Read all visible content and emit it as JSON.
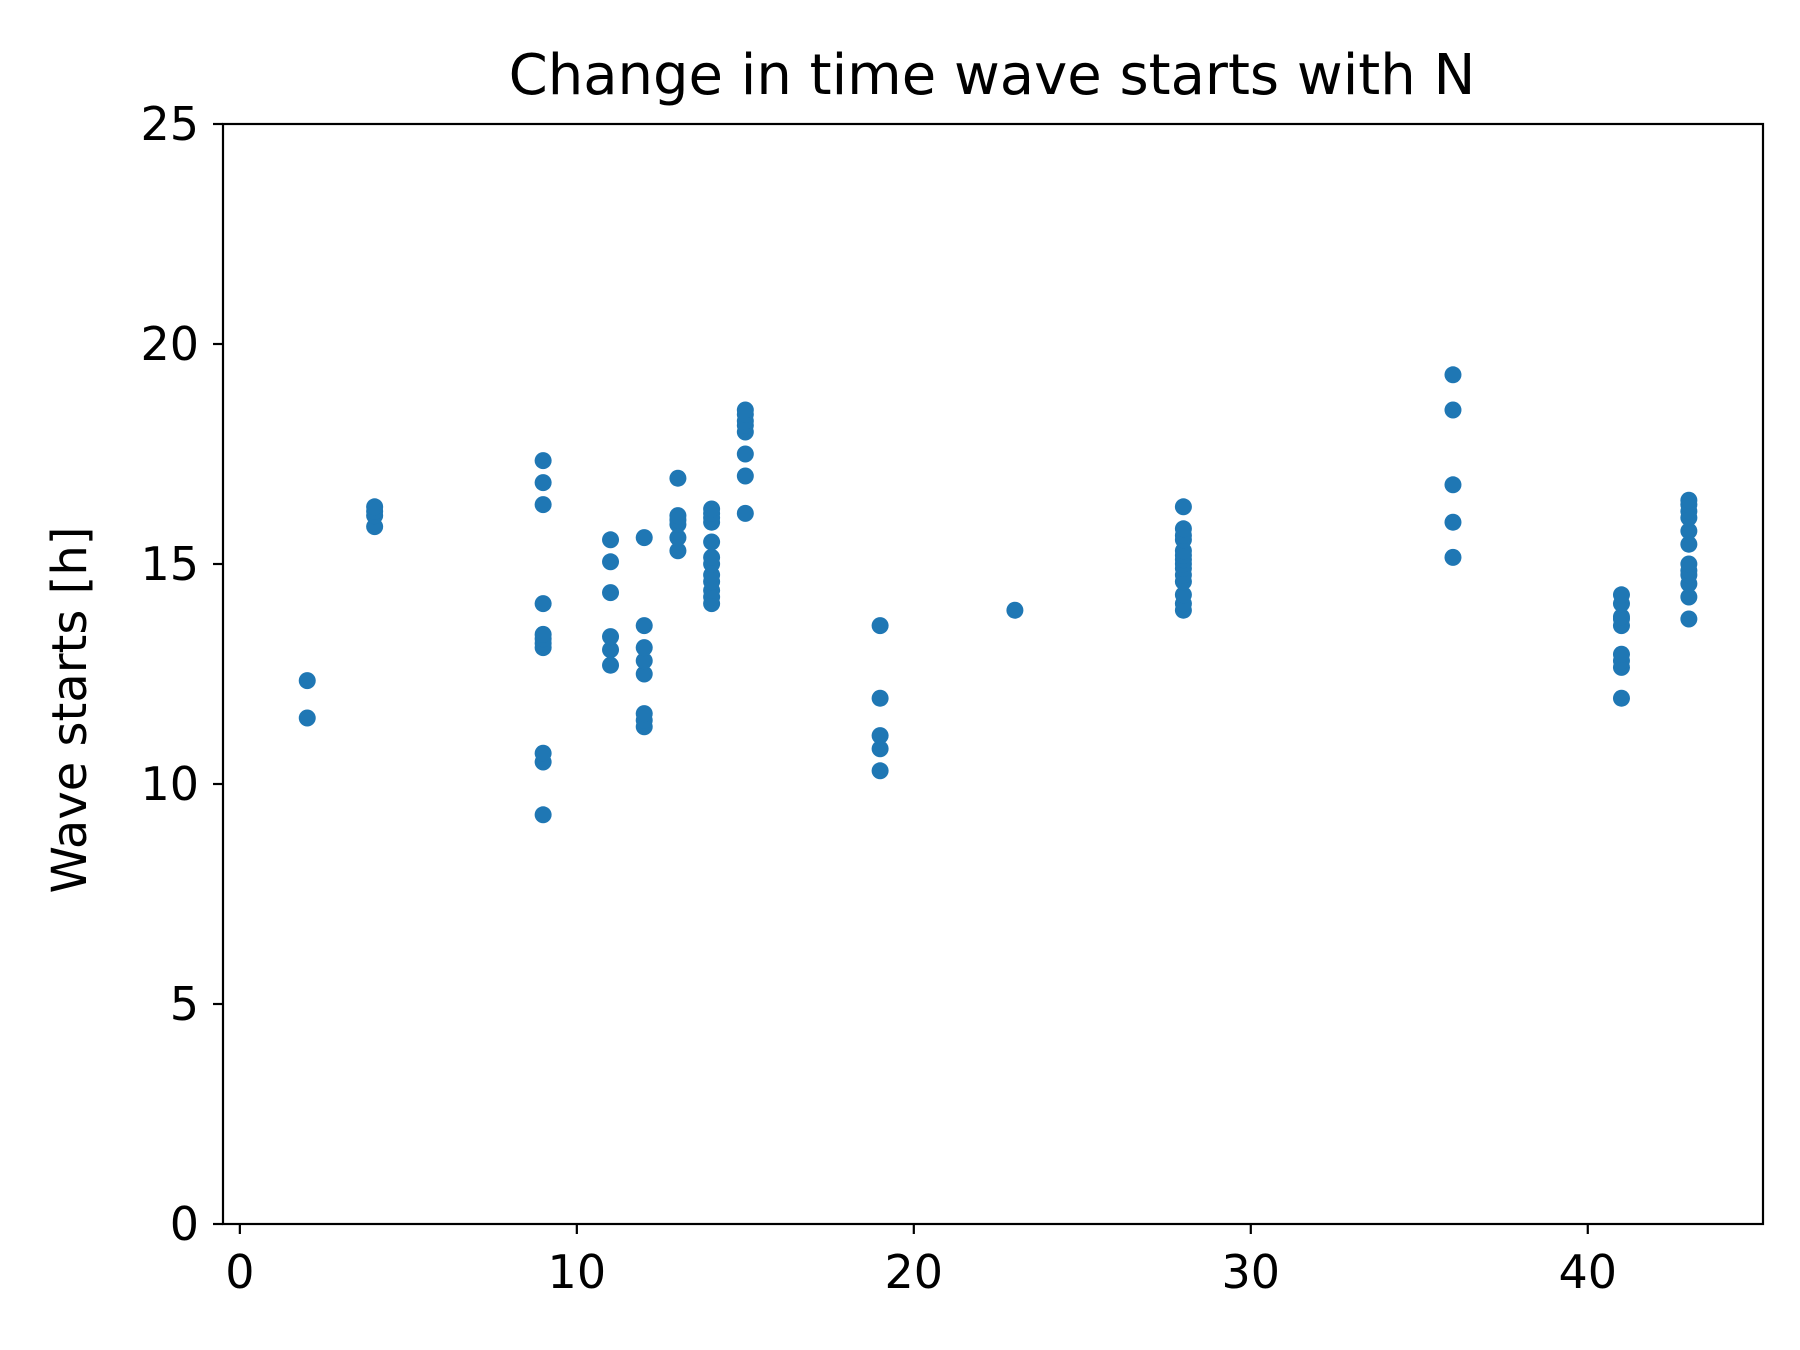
{
  "chart_data": {
    "type": "scatter",
    "title": "Change in time wave starts with N",
    "xlabel": "",
    "ylabel": "Wave starts [h]",
    "xlim": [
      -0.5,
      45.2
    ],
    "ylim": [
      0,
      25
    ],
    "xticks": [
      0,
      10,
      20,
      30,
      40
    ],
    "yticks": [
      0,
      5,
      10,
      15,
      20,
      25
    ],
    "grid": false,
    "color": "#1f77b4",
    "series": [
      {
        "x": [
          2,
          2,
          4,
          4,
          4,
          4,
          9,
          9,
          9,
          9,
          9,
          9,
          9,
          9,
          9,
          9,
          9,
          11,
          11,
          11,
          11,
          11,
          11,
          12,
          12,
          12,
          12,
          12,
          12,
          12,
          12,
          13,
          13,
          13,
          13,
          13,
          13,
          14,
          14,
          14,
          14,
          14,
          14,
          14,
          14,
          14,
          14,
          14,
          14,
          15,
          15,
          15,
          15,
          15,
          15,
          15,
          15,
          19,
          19,
          19,
          19,
          19,
          23,
          28,
          28,
          28,
          28,
          28,
          28,
          28,
          28,
          28,
          28,
          28,
          28,
          28,
          28,
          36,
          36,
          36,
          36,
          36,
          41,
          41,
          41,
          41,
          41,
          41,
          41,
          41,
          41,
          43,
          43,
          43,
          43,
          43,
          43,
          43,
          43,
          43,
          43,
          43,
          43
        ],
        "y": [
          11.5,
          12.35,
          15.85,
          16.1,
          16.2,
          16.3,
          9.3,
          10.5,
          10.7,
          13.1,
          13.2,
          13.3,
          13.4,
          14.1,
          16.35,
          16.85,
          17.35,
          12.7,
          13.05,
          13.35,
          14.35,
          15.05,
          15.55,
          11.3,
          11.45,
          11.6,
          12.5,
          12.8,
          13.1,
          13.6,
          15.6,
          15.3,
          15.6,
          15.9,
          16.0,
          16.1,
          16.95,
          14.1,
          14.25,
          14.4,
          14.6,
          14.75,
          15.0,
          15.15,
          15.5,
          15.95,
          16.05,
          16.15,
          16.25,
          16.15,
          17.0,
          17.5,
          18.0,
          18.15,
          18.25,
          18.4,
          18.5,
          10.3,
          10.8,
          11.1,
          11.95,
          13.6,
          13.95,
          13.95,
          14.1,
          14.3,
          14.6,
          14.75,
          14.9,
          15.0,
          15.1,
          15.2,
          15.3,
          15.55,
          15.65,
          15.8,
          16.3,
          15.15,
          15.95,
          16.8,
          18.5,
          19.3,
          11.95,
          12.65,
          12.8,
          12.95,
          13.6,
          13.75,
          13.8,
          14.1,
          14.3,
          13.75,
          14.25,
          14.55,
          14.75,
          14.85,
          15.0,
          15.45,
          15.75,
          16.05,
          16.2,
          16.35,
          16.45
        ]
      }
    ]
  }
}
